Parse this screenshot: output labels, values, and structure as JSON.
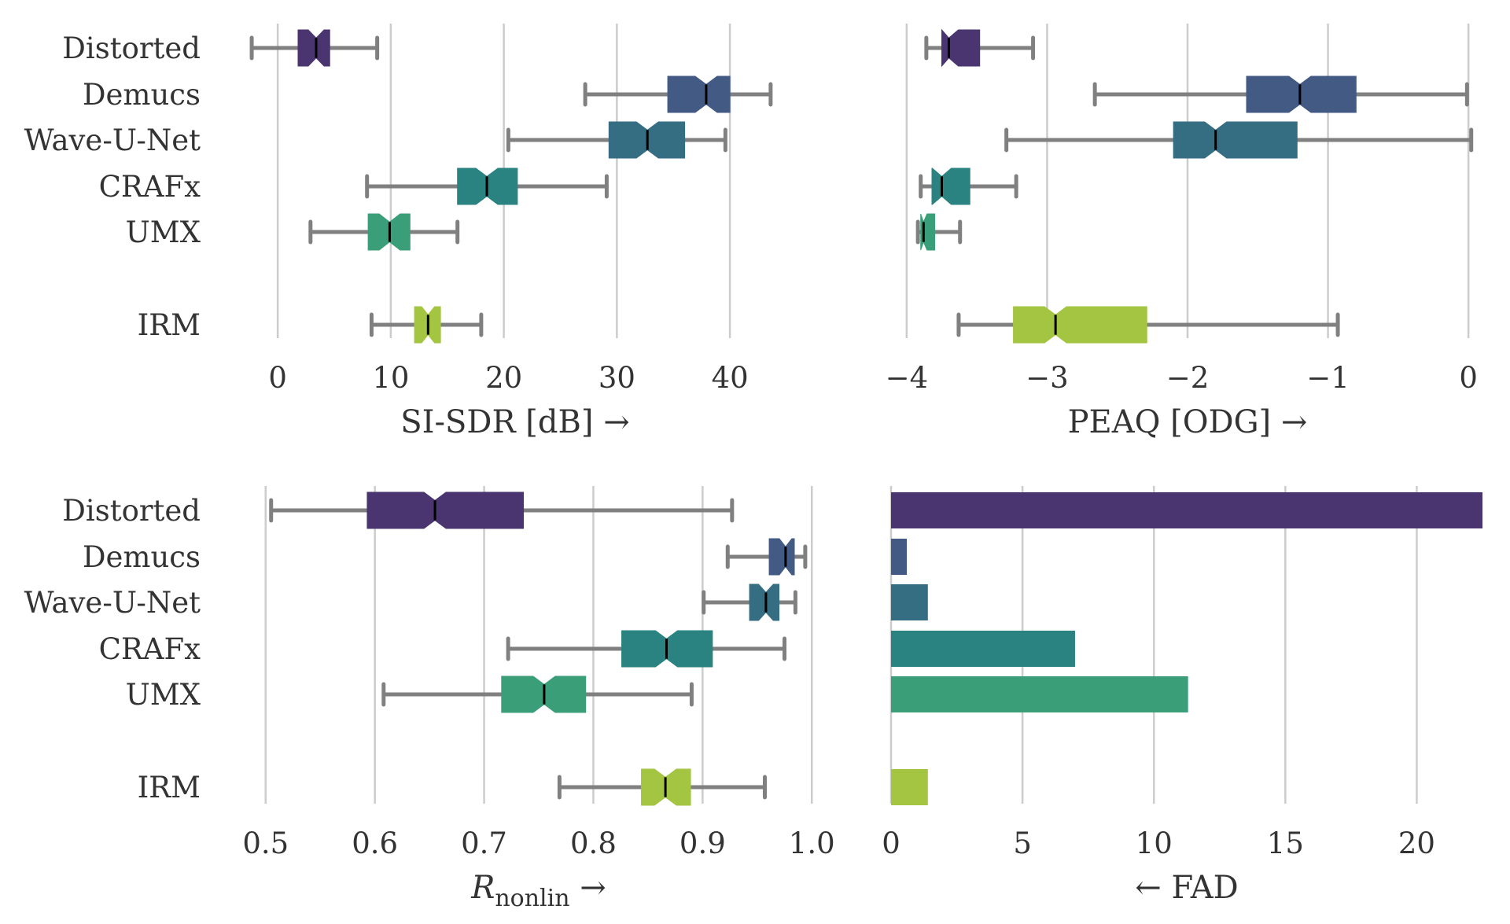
{
  "chart_data": [
    {
      "type": "box",
      "categories": [
        "Distorted",
        "Demucs",
        "Wave-U-Net",
        "CRAFx",
        "UMX",
        "IRM"
      ],
      "xlabel": "SI-SDR [dB] →",
      "xticks": [
        "0",
        "10",
        "20",
        "30",
        "40"
      ],
      "xlim": [
        -3,
        45
      ],
      "grid": true,
      "notched": true,
      "boxes": [
        {
          "category": "Distorted",
          "whisker_low": -2.3,
          "q1": 1.8,
          "median": 3.4,
          "q3": 4.6,
          "whisker_high": 8.8
        },
        {
          "category": "Demucs",
          "whisker_low": 27.2,
          "q1": 34.5,
          "median": 37.9,
          "q3": 40.0,
          "whisker_high": 43.6
        },
        {
          "category": "Wave-U-Net",
          "whisker_low": 20.4,
          "q1": 29.3,
          "median": 32.7,
          "q3": 36.0,
          "whisker_high": 39.6
        },
        {
          "category": "CRAFx",
          "whisker_low": 7.9,
          "q1": 15.9,
          "median": 18.5,
          "q3": 21.2,
          "whisker_high": 29.1
        },
        {
          "category": "UMX",
          "whisker_low": 2.9,
          "q1": 8.0,
          "median": 9.9,
          "q3": 11.7,
          "whisker_high": 15.9
        },
        {
          "category": "IRM",
          "whisker_low": 8.3,
          "q1": 12.1,
          "median": 13.3,
          "q3": 14.4,
          "whisker_high": 18.0
        }
      ]
    },
    {
      "type": "box",
      "categories": [
        "Distorted",
        "Demucs",
        "Wave-U-Net",
        "CRAFx",
        "UMX",
        "IRM"
      ],
      "xlabel": "PEAQ [ODG] →",
      "xticks": [
        "−4",
        "−3",
        "−2",
        "−1",
        "0"
      ],
      "xlim": [
        -4.1,
        0.1
      ],
      "grid": true,
      "notched": true,
      "boxes": [
        {
          "category": "Distorted",
          "whisker_low": -3.86,
          "q1": -3.75,
          "median": -3.7,
          "q3": -3.48,
          "whisker_high": -3.1
        },
        {
          "category": "Demucs",
          "whisker_low": -2.66,
          "q1": -1.58,
          "median": -1.2,
          "q3": -0.8,
          "whisker_high": -0.01
        },
        {
          "category": "Wave-U-Net",
          "whisker_low": -3.29,
          "q1": -2.1,
          "median": -1.8,
          "q3": -1.22,
          "whisker_high": 0.02
        },
        {
          "category": "CRAFx",
          "whisker_low": -3.9,
          "q1": -3.82,
          "median": -3.75,
          "q3": -3.55,
          "whisker_high": -3.22
        },
        {
          "category": "UMX",
          "whisker_low": -3.92,
          "q1": -3.9,
          "median": -3.88,
          "q3": -3.8,
          "whisker_high": -3.62
        },
        {
          "category": "IRM",
          "whisker_low": -3.63,
          "q1": -3.24,
          "median": -2.94,
          "q3": -2.29,
          "whisker_high": -0.93
        }
      ]
    },
    {
      "type": "box",
      "categories": [
        "Distorted",
        "Demucs",
        "Wave-U-Net",
        "CRAFx",
        "UMX",
        "IRM"
      ],
      "xlabel": "R",
      "xlabel_sub": "nonlin",
      "xlabel_suffix": " →",
      "xticks": [
        "0.5",
        "0.6",
        "0.7",
        "0.8",
        "0.9",
        "1.0"
      ],
      "xlim": [
        0.48,
        1.02
      ],
      "grid": true,
      "notched": true,
      "boxes": [
        {
          "category": "Distorted",
          "whisker_low": 0.505,
          "q1": 0.593,
          "median": 0.655,
          "q3": 0.736,
          "whisker_high": 0.927
        },
        {
          "category": "Demucs",
          "whisker_low": 0.923,
          "q1": 0.961,
          "median": 0.976,
          "q3": 0.984,
          "whisker_high": 0.994
        },
        {
          "category": "Wave-U-Net",
          "whisker_low": 0.901,
          "q1": 0.943,
          "median": 0.958,
          "q3": 0.97,
          "whisker_high": 0.985
        },
        {
          "category": "CRAFx",
          "whisker_low": 0.722,
          "q1": 0.826,
          "median": 0.867,
          "q3": 0.909,
          "whisker_high": 0.975
        },
        {
          "category": "UMX",
          "whisker_low": 0.608,
          "q1": 0.716,
          "median": 0.755,
          "q3": 0.793,
          "whisker_high": 0.89
        },
        {
          "category": "IRM",
          "whisker_low": 0.769,
          "q1": 0.844,
          "median": 0.866,
          "q3": 0.889,
          "whisker_high": 0.957
        }
      ]
    },
    {
      "type": "bar",
      "orientation": "horizontal",
      "categories": [
        "Distorted",
        "Demucs",
        "Wave-U-Net",
        "CRAFx",
        "UMX",
        "IRM"
      ],
      "values": [
        22.5,
        0.6,
        1.4,
        7.0,
        11.3,
        1.4
      ],
      "xlabel": "← FAD",
      "xticks": [
        "0",
        "5",
        "10",
        "15",
        "20"
      ],
      "xlim": [
        0,
        22.5
      ],
      "grid": true
    }
  ],
  "colors": {
    "Distorted": "#4a3571",
    "Demucs": "#435a84",
    "Wave-U-Net": "#356d83",
    "CRAFx": "#2a8380",
    "UMX": "#3a9f79",
    "IRM": "#a3c541",
    "whisker": "#808080",
    "grid": "#cccccc",
    "median": "#000000",
    "text": "#333333"
  }
}
